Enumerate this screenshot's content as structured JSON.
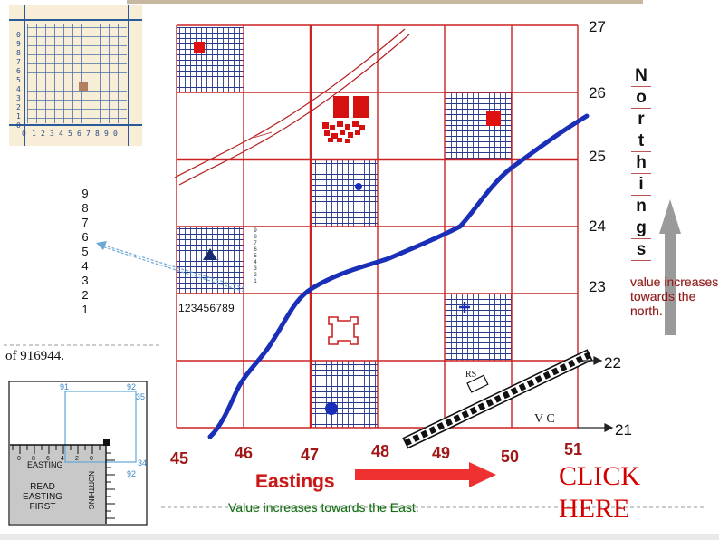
{
  "grid": {
    "eastings": [
      "45",
      "46",
      "47",
      "48",
      "49",
      "50",
      "51"
    ],
    "northings": [
      "21",
      "22",
      "23",
      "24",
      "25",
      "26",
      "27"
    ]
  },
  "northings_title": [
    "N",
    "o",
    "r",
    "t",
    "h",
    "i",
    "n",
    "g",
    "s"
  ],
  "northings_note": "value increases towards the north.",
  "eastings_title": "Eastings",
  "eastings_note": "Value increases towards the East.",
  "inset_topleft": {
    "axis_digits": [
      "0",
      "1",
      "2",
      "3",
      "4",
      "5",
      "6",
      "7",
      "8",
      "9",
      "0"
    ]
  },
  "subgrid_digits_vertical": [
    "9",
    "8",
    "7",
    "6",
    "5",
    "4",
    "3",
    "2",
    "1"
  ],
  "subgrid_digits_horizontal": "123456789",
  "subgrid_digits_small": [
    "9",
    "8",
    "7",
    "6",
    "5",
    "4",
    "3",
    "2",
    "1"
  ],
  "reference_text": "of 916944.",
  "rs_label": "RS",
  "vc_label": "V C",
  "protractor": {
    "easting_labels": [
      "91",
      "92"
    ],
    "northing_labels": [
      "35",
      "34"
    ],
    "scale_label": "EASTING",
    "north_scale_label": "NORTHING",
    "instruction": [
      "READ",
      "EASTING",
      "FIRST"
    ],
    "scale_digits": [
      "0",
      "9",
      "8",
      "7",
      "6",
      "5",
      "4",
      "3",
      "2",
      "1",
      "0"
    ]
  },
  "click_here": [
    "CLICK",
    "HERE"
  ],
  "colors": {
    "grid_red": "#cc2222",
    "river_blue": "#1a2fb8",
    "hatch_navy": "#1a2a70"
  }
}
